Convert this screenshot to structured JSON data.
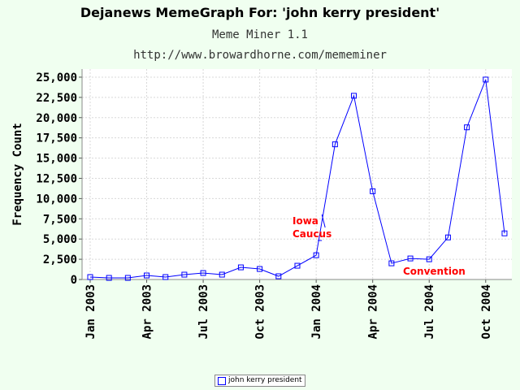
{
  "title": "Dejanews MemeGraph For: 'john kerry president'",
  "subtitle1": "Meme Miner 1.1",
  "subtitle2": "http://www.browardhorne.com/mememiner",
  "chart_data": {
    "type": "line",
    "ylabel": "Frequency Count",
    "xlabel": "",
    "ylim": [
      0,
      26000
    ],
    "y_ticks": [
      0,
      2500,
      5000,
      7500,
      10000,
      12500,
      15000,
      17500,
      20000,
      22500,
      25000
    ],
    "y_tick_labels": [
      "0",
      "2,500",
      "5,000",
      "7,500",
      "10,000",
      "12,500",
      "15,000",
      "17,500",
      "20,000",
      "22,500",
      "25,000"
    ],
    "x_tick_labels": [
      "Jan 2003",
      "Apr 2003",
      "Jul 2003",
      "Oct 2003",
      "Jan 2004",
      "Apr 2004",
      "Jul 2004",
      "Oct 2004"
    ],
    "x": [
      "2003-01",
      "2003-02",
      "2003-03",
      "2003-04",
      "2003-05",
      "2003-06",
      "2003-07",
      "2003-08",
      "2003-09",
      "2003-10",
      "2003-11",
      "2003-12",
      "2004-01",
      "2004-02",
      "2004-03",
      "2004-04",
      "2004-05",
      "2004-06",
      "2004-07",
      "2004-08",
      "2004-09",
      "2004-10",
      "2004-11"
    ],
    "series": [
      {
        "name": "john kerry president",
        "color": "#0000ff",
        "values": [
          300,
          200,
          200,
          500,
          300,
          600,
          800,
          600,
          1500,
          1300,
          400,
          1700,
          3000,
          16700,
          22700,
          10900,
          2000,
          2600,
          2500,
          5200,
          18800,
          24700,
          5700
        ]
      }
    ],
    "annotations": [
      {
        "text": "Iowa\nCaucus",
        "x": "2004-01",
        "color": "#ff0000"
      },
      {
        "text": "Convention",
        "x": "2004-07",
        "color": "#ff0000"
      }
    ],
    "grid": true,
    "legend": "bottom-center"
  }
}
